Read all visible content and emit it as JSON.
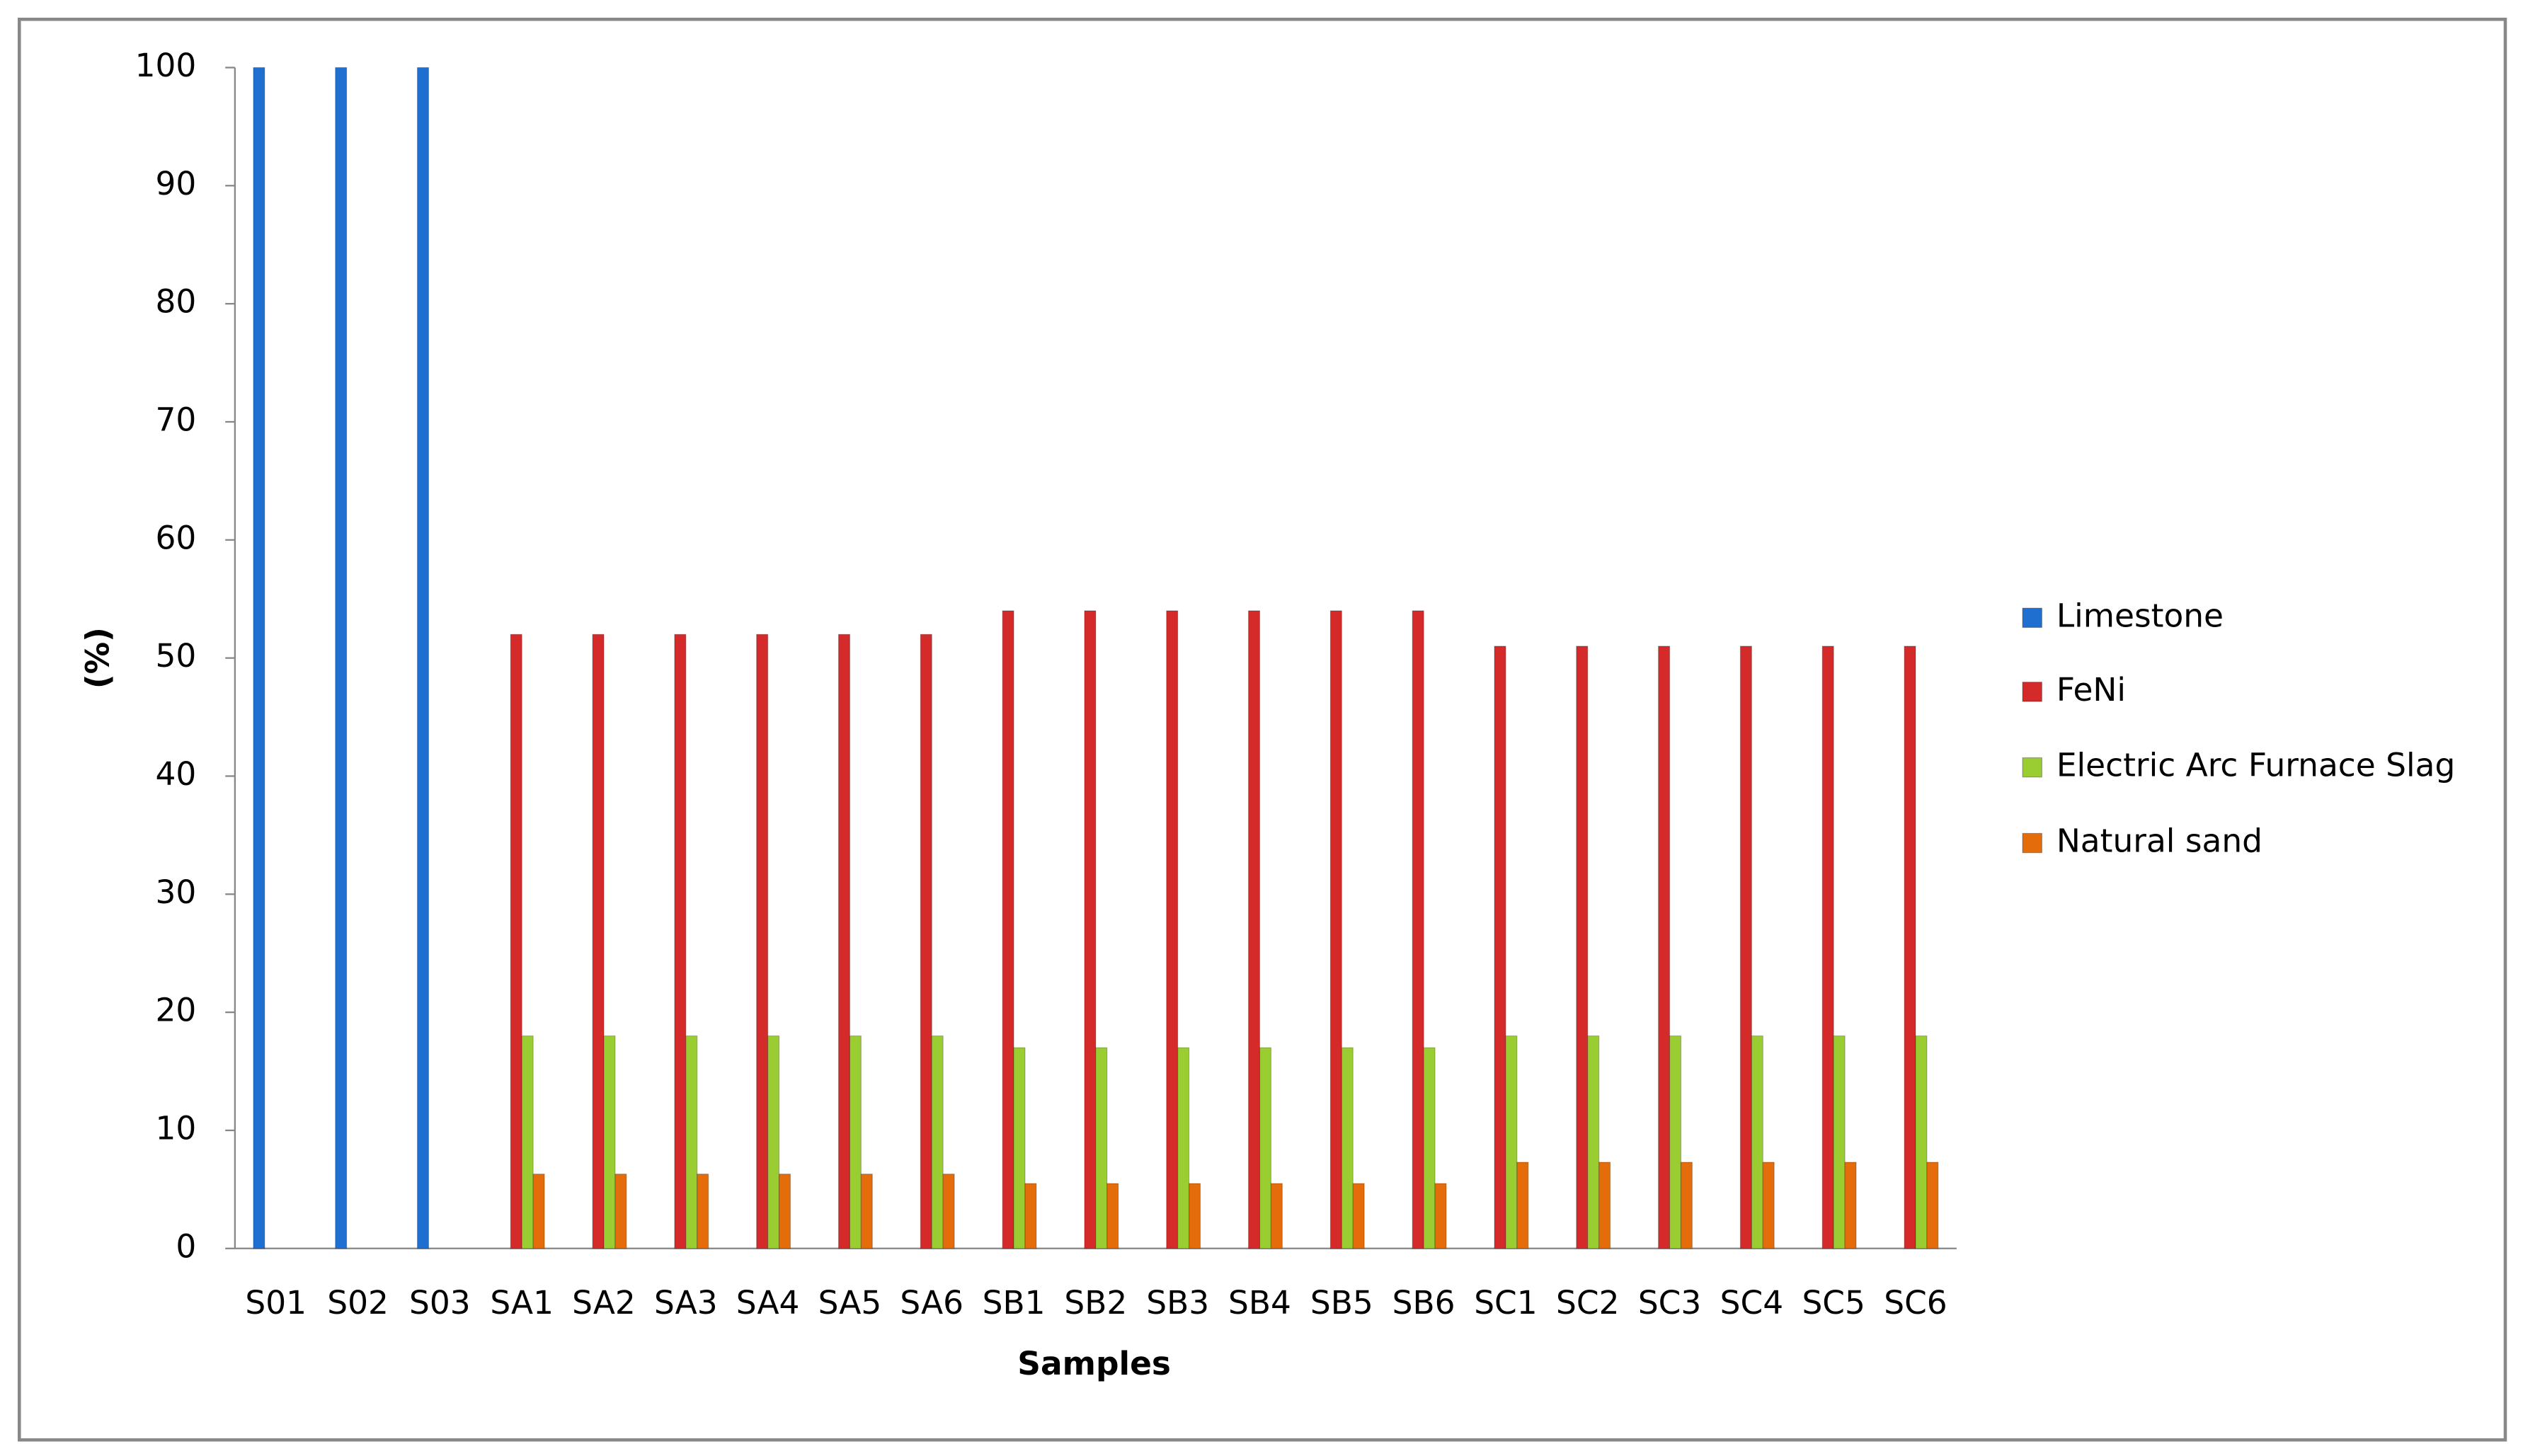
{
  "chart_data": {
    "type": "bar",
    "x_label": "Samples",
    "y_label": "(%)",
    "categories": [
      "S01",
      "S02",
      "S03",
      "SA1",
      "SA2",
      "SA3",
      "SA4",
      "SA5",
      "SA6",
      "SB1",
      "SB2",
      "SB3",
      "SB4",
      "SB5",
      "SB6",
      "SC1",
      "SC2",
      "SC3",
      "SC4",
      "SC5",
      "SC6"
    ],
    "series": [
      {
        "name": "Limestone",
        "color": "#1f6fd1",
        "values": [
          100,
          100,
          100,
          null,
          null,
          null,
          null,
          null,
          null,
          null,
          null,
          null,
          null,
          null,
          null,
          null,
          null,
          null,
          null,
          null,
          null
        ]
      },
      {
        "name": "FeNi",
        "color": "#d42a2a",
        "values": [
          null,
          null,
          null,
          52,
          52,
          52,
          52,
          52,
          52,
          54,
          54,
          54,
          54,
          54,
          54,
          51,
          51,
          51,
          51,
          51,
          51
        ]
      },
      {
        "name": "Electric Arc Furnace Slag",
        "color": "#9acd32",
        "values": [
          null,
          null,
          null,
          18,
          18,
          18,
          18,
          18,
          18,
          17,
          17,
          17,
          17,
          17,
          17,
          18,
          18,
          18,
          18,
          18,
          18
        ]
      },
      {
        "name": "Natural sand",
        "color": "#e46c0a",
        "values": [
          null,
          null,
          null,
          6.3,
          6.3,
          6.3,
          6.3,
          6.3,
          6.3,
          5.5,
          5.5,
          5.5,
          5.5,
          5.5,
          5.5,
          7.3,
          7.3,
          7.3,
          7.3,
          7.3,
          7.3
        ]
      }
    ],
    "ylim": [
      0,
      100
    ],
    "yticks": [
      0,
      10,
      20,
      30,
      40,
      50,
      60,
      70,
      80,
      90,
      100
    ],
    "grid": false,
    "legend": "right"
  }
}
